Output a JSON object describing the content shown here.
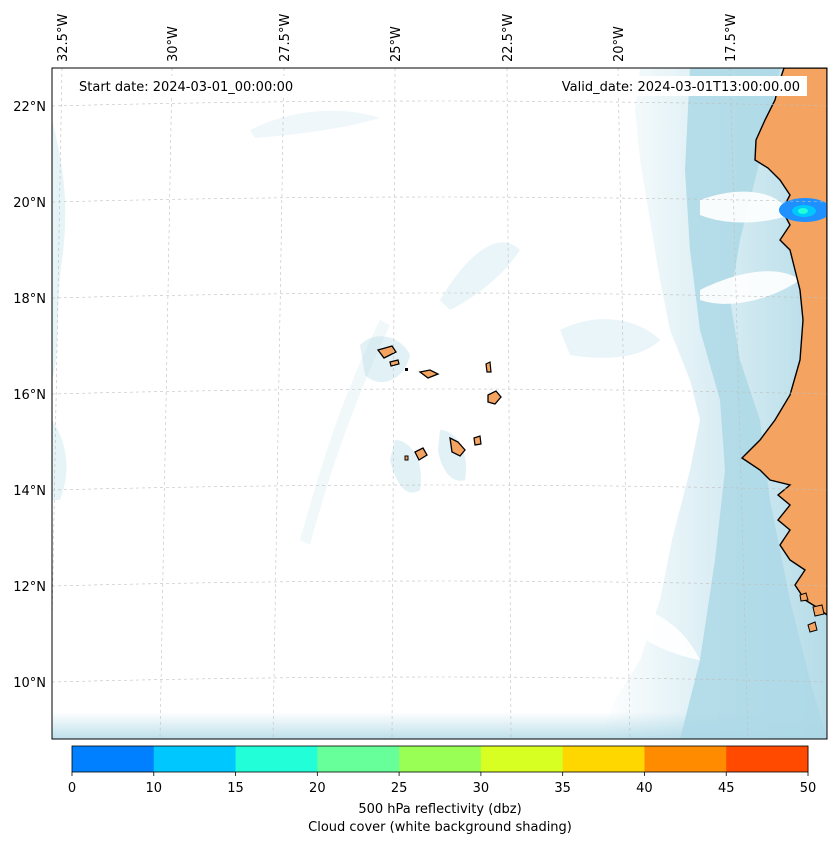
{
  "map": {
    "start_date": "Start date: 2024-03-01_00:00:00",
    "valid_date": "Valid_date: 2024-03-01T13:00:00.00",
    "lon_labels": [
      "32.5°W",
      "30°W",
      "27.5°W",
      "25°W",
      "22.5°W",
      "20°W",
      "17.5°W"
    ],
    "lat_labels": [
      "22°N",
      "20°N",
      "18°N",
      "16°N",
      "14°N",
      "12°N",
      "10°N"
    ]
  },
  "colorbar": {
    "ticks": [
      "0",
      "10",
      "15",
      "20",
      "25",
      "30",
      "35",
      "40",
      "45",
      "50"
    ],
    "colors": [
      "#0080ff",
      "#00c8ff",
      "#22ffd8",
      "#66ff99",
      "#99ff55",
      "#d8ff22",
      "#ffd700",
      "#ff8c00",
      "#ff4a00"
    ],
    "label_line1": "500 hPa reflectivity (dbz)",
    "label_line2": "Cloud cover (white background shading)"
  },
  "colors": {
    "land": "#f4a460",
    "cloud": "#add8e6",
    "reflectivity_low": "#1e90ff",
    "reflectivity_mid": "#22ffd8"
  }
}
